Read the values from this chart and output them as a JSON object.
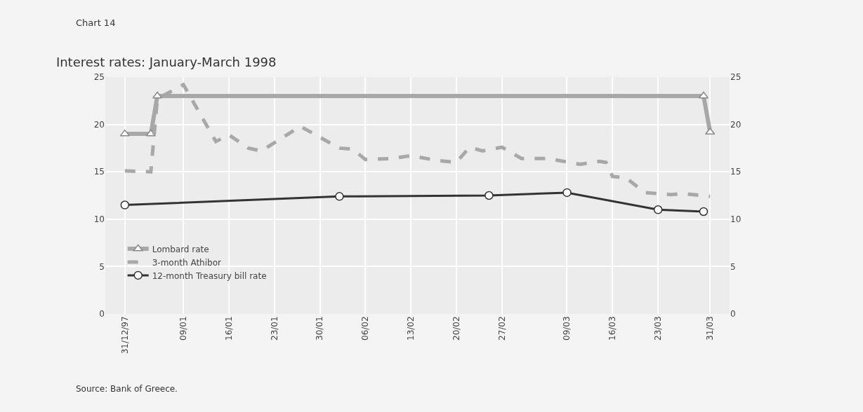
{
  "chart_data": {
    "type": "line",
    "title": "Interest rates: January-March 1998",
    "subtitle": "Chart 14",
    "annotations": [
      "Source: Bank of Greece."
    ],
    "series": [
      {
        "name": "Lombard rate",
        "color": "#a8a8a8",
        "line_style": "solid",
        "marker": "triangle",
        "x": [
          "1997-12-31",
          "1998-01-04",
          "1998-01-05",
          "1998-03-30",
          "1998-03-31"
        ],
        "values": [
          19,
          19,
          23,
          23,
          19.2
        ]
      },
      {
        "name": "3-month Athibor",
        "color": "#a8a8a8",
        "line_style": "dashed",
        "marker": "none",
        "x": [
          "1997-12-31",
          "1998-01-04",
          "1998-01-05",
          "1998-01-09",
          "1998-01-14",
          "1998-01-16",
          "1998-01-19",
          "1998-01-21",
          "1998-01-27",
          "1998-02-02",
          "1998-02-04",
          "1998-02-06",
          "1998-02-10",
          "1998-02-13",
          "1998-02-17",
          "1998-02-20",
          "1998-02-22",
          "1998-02-24",
          "1998-02-27",
          "1998-03-02",
          "1998-03-06",
          "1998-03-11",
          "1998-03-14",
          "1998-03-15",
          "1998-03-16",
          "1998-03-18",
          "1998-03-21",
          "1998-03-25",
          "1998-03-27",
          "1998-03-31"
        ],
        "values": [
          15.1,
          15.0,
          22.7,
          24.2,
          18.2,
          18.9,
          17.5,
          17.2,
          19.8,
          17.5,
          17.4,
          16.3,
          16.4,
          16.7,
          16.2,
          16.0,
          17.6,
          17.2,
          17.6,
          16.4,
          16.4,
          15.8,
          16.1,
          16.0,
          14.5,
          14.4,
          12.8,
          12.6,
          12.7,
          12.4
        ]
      },
      {
        "name": "12-month Treasury bill rate",
        "color": "#333333",
        "line_style": "solid",
        "marker": "circle",
        "x": [
          "1997-12-31",
          "1998-02-02",
          "1998-02-25",
          "1998-03-09",
          "1998-03-23",
          "1998-03-30"
        ],
        "values": [
          11.5,
          12.4,
          12.5,
          12.8,
          11.0,
          10.8
        ]
      }
    ],
    "xlim": [
      "1997-12-28",
      "1998-04-03"
    ],
    "xticks": [
      {
        "value": "1997-12-31",
        "label": "31/12/97"
      },
      {
        "value": "1998-01-09",
        "label": "09/01"
      },
      {
        "value": "1998-01-16",
        "label": "16/01"
      },
      {
        "value": "1998-01-23",
        "label": "23/01"
      },
      {
        "value": "1998-01-30",
        "label": "30/01"
      },
      {
        "value": "1998-02-06",
        "label": "06/02"
      },
      {
        "value": "1998-02-13",
        "label": "13/02"
      },
      {
        "value": "1998-02-20",
        "label": "20/02"
      },
      {
        "value": "1998-02-27",
        "label": "27/02"
      },
      {
        "value": "1998-03-09",
        "label": "09/03"
      },
      {
        "value": "1998-03-16",
        "label": "16/03"
      },
      {
        "value": "1998-03-23",
        "label": "23/03"
      },
      {
        "value": "1998-03-31",
        "label": "31/03"
      }
    ],
    "ylim": [
      0,
      25
    ],
    "yticks": [
      0,
      5,
      10,
      15,
      20,
      25
    ],
    "y2lim": [
      0,
      25
    ],
    "y2ticks": [
      0,
      5,
      10,
      15,
      20,
      25
    ],
    "grid": true,
    "legend": "bottom left"
  }
}
